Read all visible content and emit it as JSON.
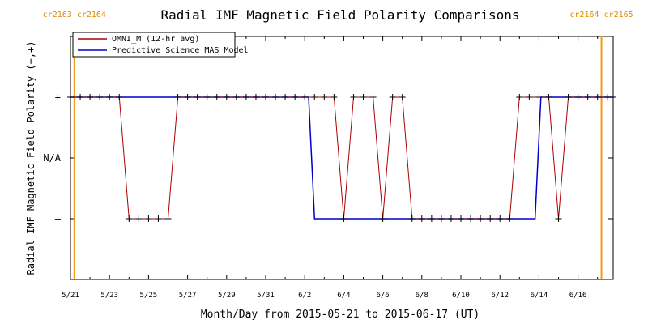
{
  "chart_data": {
    "type": "line",
    "title": "Radial IMF Magnetic Field Polarity Comparisons",
    "xlabel": "Month/Day from 2015-05-21 to 2015-06-17 (UT)",
    "ylabel": "Radial IMF Magnetic Field Polarity (−,+)",
    "x_tick_labels": [
      "5/21",
      "5/23",
      "5/25",
      "5/27",
      "5/29",
      "5/31",
      "6/2",
      "6/4",
      "6/6",
      "6/8",
      "6/10",
      "6/12",
      "6/14",
      "6/16"
    ],
    "y_tick_labels": [
      {
        "value": 1,
        "label": "+"
      },
      {
        "value": 0,
        "label": "N/A"
      },
      {
        "value": -1,
        "label": "–"
      }
    ],
    "xlim_days": [
      0,
      27.8
    ],
    "ylim": [
      -2,
      2
    ],
    "grid": false,
    "legend_placement": "top-left",
    "carrington_markers": [
      {
        "day": 0.2,
        "label": "cr2163 cr2164"
      },
      {
        "day": 27.2,
        "label": "cr2164 cr2165"
      }
    ],
    "series": [
      {
        "name": "OMNI_M (12-hr avg)",
        "color": "#aa0000",
        "points": [
          [
            0,
            1
          ],
          [
            0.5,
            1
          ],
          [
            1,
            1
          ],
          [
            1.5,
            1
          ],
          [
            2,
            1
          ],
          [
            2.5,
            1
          ],
          [
            3,
            -1
          ],
          [
            3.5,
            -1
          ],
          [
            4,
            -1
          ],
          [
            4.5,
            -1
          ],
          [
            5,
            -1
          ],
          [
            5.5,
            1
          ],
          [
            6,
            1
          ],
          [
            6.5,
            1
          ],
          [
            7,
            1
          ],
          [
            7.5,
            1
          ],
          [
            8,
            1
          ],
          [
            8.5,
            1
          ],
          [
            9,
            1
          ],
          [
            9.5,
            1
          ],
          [
            10,
            1
          ],
          [
            10.5,
            1
          ],
          [
            11,
            1
          ],
          [
            11.5,
            1
          ],
          [
            12,
            1
          ],
          [
            12.5,
            1
          ],
          [
            13,
            1
          ],
          [
            13.5,
            1
          ],
          [
            14,
            -1
          ],
          [
            14.5,
            1
          ],
          [
            15,
            1
          ],
          [
            15.5,
            1
          ],
          [
            16,
            -1
          ],
          [
            16.5,
            1
          ],
          [
            17,
            1
          ],
          [
            17.5,
            -1
          ],
          [
            18,
            -1
          ],
          [
            18.5,
            -1
          ],
          [
            19,
            -1
          ],
          [
            19.5,
            -1
          ],
          [
            20,
            -1
          ],
          [
            20.5,
            -1
          ],
          [
            21,
            -1
          ],
          [
            21.5,
            -1
          ],
          [
            22,
            -1
          ],
          [
            22.5,
            -1
          ],
          [
            23,
            1
          ],
          [
            23.5,
            1
          ],
          [
            24,
            1
          ],
          [
            24.5,
            1
          ],
          [
            25,
            -1
          ],
          [
            25.5,
            1
          ],
          [
            26,
            1
          ],
          [
            26.5,
            1
          ],
          [
            27,
            1
          ],
          [
            27.5,
            1
          ],
          [
            27.8,
            1
          ]
        ]
      },
      {
        "name": "Predictive Science MAS Model",
        "color": "#0000cc",
        "points": [
          [
            0,
            1
          ],
          [
            12.2,
            1
          ],
          [
            12.5,
            -1
          ],
          [
            23.8,
            -1
          ],
          [
            24.1,
            1
          ],
          [
            27.8,
            1
          ]
        ]
      }
    ]
  }
}
